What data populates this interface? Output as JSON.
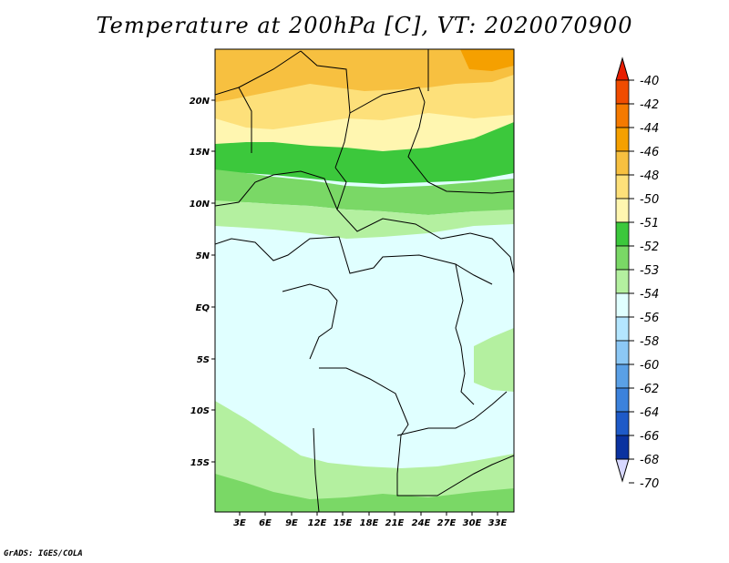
{
  "title": "Temperature at 200hPa [C], VT: 2020070900",
  "credit": "GrADS: IGES/COLA",
  "map": {
    "lat_labels": [
      "20N",
      "15N",
      "10N",
      "5N",
      "EQ",
      "5S",
      "10S",
      "15S"
    ],
    "lon_labels": [
      "3E",
      "6E",
      "9E",
      "12E",
      "15E",
      "18E",
      "21E",
      "24E",
      "27E",
      "30E",
      "33E"
    ]
  },
  "legend": {
    "labels": [
      "-40",
      "-42",
      "-44",
      "-46",
      "-48",
      "-50",
      "-51",
      "-52",
      "-53",
      "-54",
      "-56",
      "-58",
      "-60",
      "-62",
      "-64",
      "-66",
      "-68",
      "-70"
    ],
    "colors": [
      "#e81d00",
      "#f04c00",
      "#f57a00",
      "#f5a000",
      "#f7c040",
      "#fde07a",
      "#fff6b0",
      "#3cc83c",
      "#7ad866",
      "#b4f0a0",
      "#e0ffff",
      "#b4e6ff",
      "#8cc8f5",
      "#5aa0e6",
      "#3c82dc",
      "#1e5ac8",
      "#0a32a0",
      "#001478"
    ]
  }
}
